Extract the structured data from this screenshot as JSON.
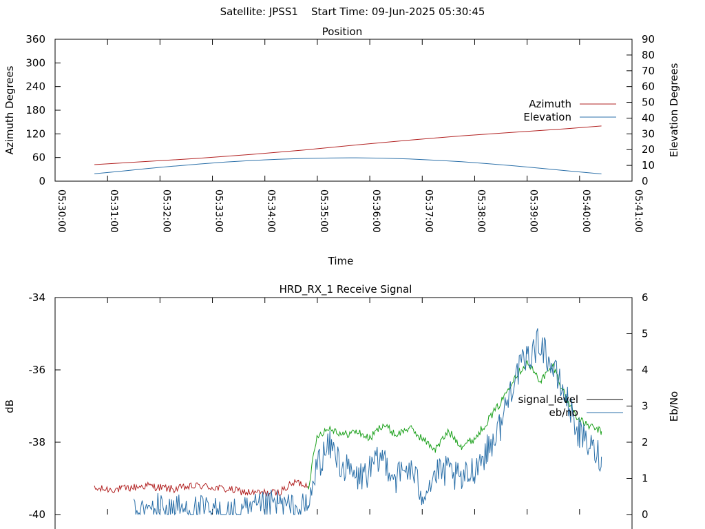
{
  "page_title": "Satellite: JPSS1    Start Time: 09-Jun-2025 05:30:45",
  "chart_data": [
    {
      "type": "line",
      "title": "Position",
      "xlabel": "Time",
      "ylabel": "Azimuth Degrees",
      "y2label": "Elevation Degrees",
      "x_ticks": [
        "05:30:00",
        "05:31:00",
        "05:32:00",
        "05:33:00",
        "05:34:00",
        "05:35:00",
        "05:36:00",
        "05:37:00",
        "05:38:00",
        "05:39:00",
        "05:40:00",
        "05:41:00"
      ],
      "ylim": [
        0,
        360
      ],
      "y_ticks": [
        0,
        60,
        120,
        180,
        240,
        300,
        360
      ],
      "y2lim": [
        0,
        90
      ],
      "y2_ticks": [
        0,
        10,
        20,
        30,
        40,
        50,
        60,
        70,
        80,
        90
      ],
      "legend_position": "right",
      "grid": false,
      "series": [
        {
          "name": "Azimuth",
          "axis": "left",
          "color": "#b22222",
          "x": [
            "05:30:45",
            "05:31:45",
            "05:32:45",
            "05:33:45",
            "05:34:45",
            "05:35:45",
            "05:36:45",
            "05:37:45",
            "05:38:45",
            "05:39:45",
            "05:40:25"
          ],
          "values": [
            42,
            50,
            58,
            68,
            79,
            92,
            104,
            115,
            124,
            133,
            140
          ]
        },
        {
          "name": "Elevation",
          "axis": "right",
          "color": "#2a6fa8",
          "x": [
            "05:30:45",
            "05:31:15",
            "05:31:45",
            "05:32:15",
            "05:32:45",
            "05:33:15",
            "05:33:45",
            "05:34:15",
            "05:34:45",
            "05:35:15",
            "05:35:45",
            "05:36:15",
            "05:36:45",
            "05:37:15",
            "05:37:45",
            "05:38:15",
            "05:38:45",
            "05:39:15",
            "05:39:45",
            "05:40:25"
          ],
          "values": [
            4.7,
            6.3,
            8.0,
            9.5,
            10.9,
            12.1,
            13.1,
            13.9,
            14.4,
            14.7,
            14.8,
            14.6,
            14.1,
            13.3,
            12.3,
            11.1,
            9.7,
            8.2,
            6.6,
            4.6
          ]
        }
      ]
    },
    {
      "type": "line",
      "title": "HRD_RX_1 Receive Signal",
      "xlabel": "",
      "ylabel": "dB",
      "y2label": "Eb/No",
      "ylim": [
        -40,
        -34
      ],
      "y_ticks": [
        -34,
        -36,
        -38,
        -40
      ],
      "y2lim": [
        0,
        6
      ],
      "y2_ticks": [
        0,
        1,
        2,
        3,
        4,
        5,
        6
      ],
      "legend_position": "right",
      "grid": false,
      "x_range": [
        "05:30:00",
        "05:41:00"
      ],
      "series": [
        {
          "name": "signal_level",
          "axis": "left",
          "legend_color": "#000000",
          "color_below_lock": "#b22222",
          "color_locked": "#1aa01a",
          "x": [
            "05:30:45",
            "05:31:15",
            "05:31:45",
            "05:32:15",
            "05:32:45",
            "05:33:15",
            "05:33:45",
            "05:34:15",
            "05:34:35",
            "05:34:50",
            "05:35:00",
            "05:35:15",
            "05:35:30",
            "05:35:45",
            "05:36:00",
            "05:36:15",
            "05:36:30",
            "05:36:45",
            "05:37:00",
            "05:37:15",
            "05:37:30",
            "05:37:45",
            "05:38:00",
            "05:38:15",
            "05:38:30",
            "05:38:45",
            "05:39:00",
            "05:39:15",
            "05:39:30",
            "05:39:45",
            "05:40:00",
            "05:40:15",
            "05:40:25"
          ],
          "values": [
            -39.3,
            -39.3,
            -39.2,
            -39.3,
            -39.2,
            -39.3,
            -39.4,
            -39.4,
            -39.1,
            -39.2,
            -37.8,
            -37.6,
            -37.8,
            -37.7,
            -37.9,
            -37.5,
            -37.8,
            -37.6,
            -37.9,
            -38.2,
            -37.7,
            -38.1,
            -37.9,
            -37.4,
            -36.9,
            -36.2,
            -35.8,
            -36.3,
            -35.9,
            -36.8,
            -37.4,
            -37.6,
            -37.7
          ],
          "lock_start": "05:34:50"
        },
        {
          "name": "eb/no",
          "axis": "right",
          "color": "#2a6fa8",
          "x": [
            "05:31:30",
            "05:32:00",
            "05:33:30",
            "05:34:15",
            "05:34:35",
            "05:34:50",
            "05:35:00",
            "05:35:15",
            "05:35:30",
            "05:35:45",
            "05:36:00",
            "05:36:15",
            "05:36:30",
            "05:36:45",
            "05:37:00",
            "05:37:15",
            "05:37:30",
            "05:37:45",
            "05:38:00",
            "05:38:15",
            "05:38:30",
            "05:38:45",
            "05:39:00",
            "05:39:15",
            "05:39:30",
            "05:39:45",
            "05:40:00",
            "05:40:15",
            "05:40:25"
          ],
          "values": [
            0.0,
            0.2,
            0.0,
            0.3,
            0.1,
            0.2,
            1.4,
            1.9,
            1.3,
            1.0,
            1.2,
            1.6,
            1.0,
            1.3,
            0.6,
            1.1,
            1.2,
            0.9,
            1.3,
            1.8,
            2.5,
            3.8,
            4.3,
            4.8,
            4.0,
            3.2,
            2.2,
            1.8,
            1.6
          ]
        }
      ]
    }
  ]
}
